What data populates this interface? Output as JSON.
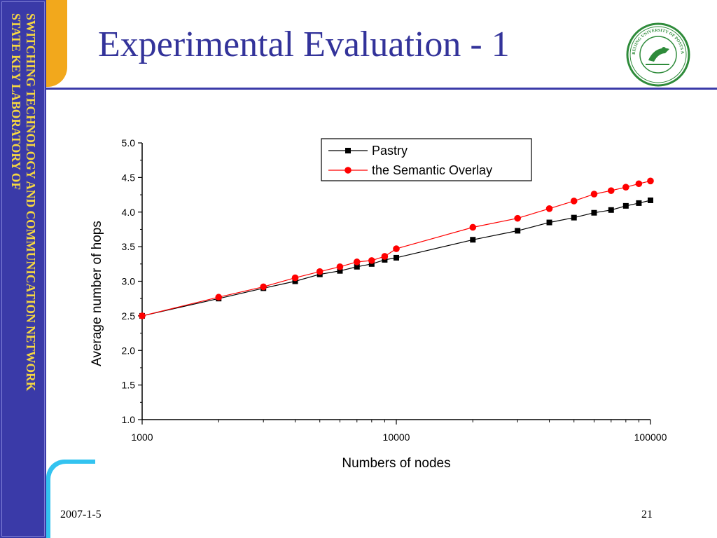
{
  "slide": {
    "title": "Experimental Evaluation - 1",
    "sidebar_line1": "SWITCHING TECHNOLOGY AND COMMUNICATION NETWORK",
    "sidebar_line2": "STATE KEY LABORATORY OF",
    "footer_date": "2007-1-5",
    "page_number": "21"
  },
  "logo": {
    "icon": "university-seal-icon",
    "ring_text": "BEIJING UNIVERSITY OF POSTS AND TELECOMMUNICATIONS",
    "colors": {
      "green": "#2e8b3a",
      "background": "#ffffff"
    }
  },
  "colors": {
    "sidebar": "#3a3aa8",
    "sidebar_text": "#f5d742",
    "title": "#33339a",
    "orange_accent": "#f2a81c",
    "cyan_accent": "#33c3f0"
  },
  "chart_data": {
    "type": "line",
    "title": "",
    "xlabel": "Numbers of nodes",
    "ylabel": "Average number of hops",
    "xscale": "log",
    "xlim": [
      1000,
      100000
    ],
    "ylim": [
      1.0,
      5.0
    ],
    "xticks": [
      1000,
      10000,
      100000
    ],
    "xtick_labels": [
      "1000",
      "10000",
      "100000"
    ],
    "yticks": [
      1.0,
      1.5,
      2.0,
      2.5,
      3.0,
      3.5,
      4.0,
      4.5,
      5.0
    ],
    "ytick_labels": [
      "1.0",
      "1.5",
      "2.0",
      "2.5",
      "3.0",
      "3.5",
      "4.0",
      "4.5",
      "5.0"
    ],
    "grid": false,
    "legend_position": "top-right",
    "series": [
      {
        "name": "Pastry",
        "color": "#000000",
        "marker": "square",
        "x": [
          1000,
          2000,
          3000,
          4000,
          5000,
          6000,
          7000,
          8000,
          9000,
          10000,
          20000,
          30000,
          40000,
          50000,
          60000,
          70000,
          80000,
          90000,
          100000
        ],
        "y": [
          2.5,
          2.75,
          2.9,
          3.0,
          3.1,
          3.15,
          3.21,
          3.25,
          3.31,
          3.34,
          3.6,
          3.73,
          3.85,
          3.92,
          3.99,
          4.03,
          4.09,
          4.13,
          4.17
        ]
      },
      {
        "name": "the Semantic Overlay",
        "color": "#ff0000",
        "marker": "circle",
        "x": [
          1000,
          2000,
          3000,
          4000,
          5000,
          6000,
          7000,
          8000,
          9000,
          10000,
          20000,
          30000,
          40000,
          50000,
          60000,
          70000,
          80000,
          90000,
          100000
        ],
        "y": [
          2.5,
          2.77,
          2.92,
          3.05,
          3.14,
          3.21,
          3.28,
          3.3,
          3.36,
          3.47,
          3.78,
          3.91,
          4.05,
          4.16,
          4.26,
          4.31,
          4.36,
          4.41,
          4.45
        ]
      }
    ]
  }
}
